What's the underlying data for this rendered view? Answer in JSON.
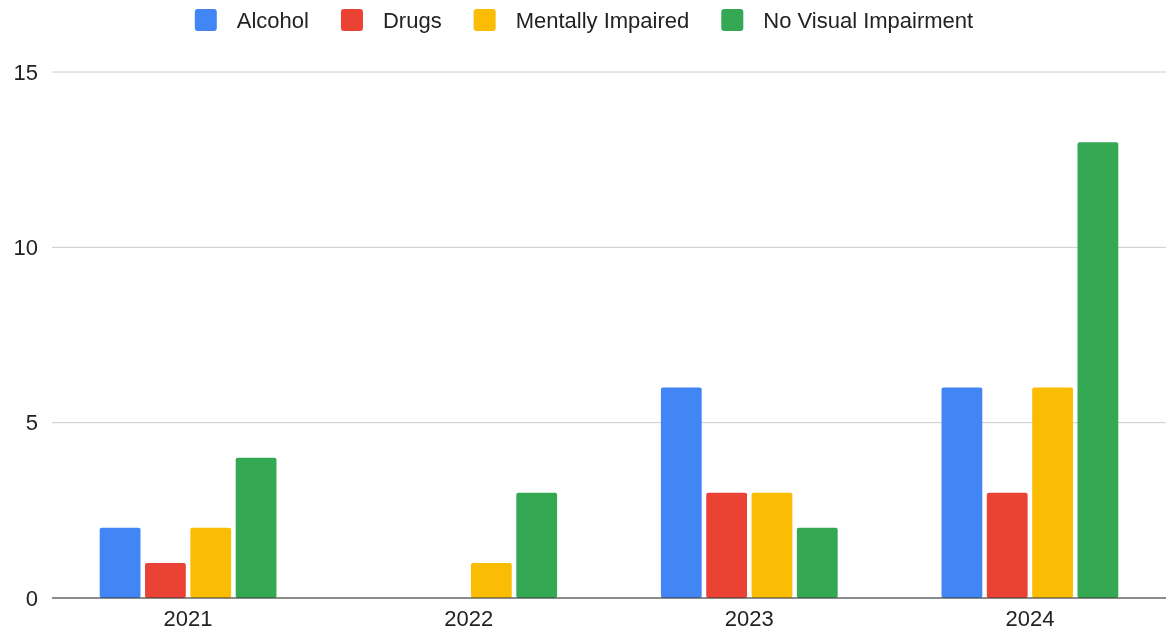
{
  "chart_data": {
    "type": "bar",
    "categories": [
      "2021",
      "2022",
      "2023",
      "2024"
    ],
    "series": [
      {
        "name": "Alcohol",
        "color": "#4285f4",
        "values": [
          2,
          0,
          6,
          6
        ]
      },
      {
        "name": "Drugs",
        "color": "#ea4335",
        "values": [
          1,
          0,
          3,
          3
        ]
      },
      {
        "name": "Mentally Impaired",
        "color": "#fbbc04",
        "values": [
          2,
          1,
          3,
          6
        ]
      },
      {
        "name": "No Visual Impairment",
        "color": "#34a853",
        "values": [
          4,
          3,
          2,
          13
        ]
      }
    ],
    "ylim": [
      0,
      15
    ],
    "yticks": [
      0,
      5,
      10,
      15
    ],
    "grid": "y",
    "legend": "top"
  }
}
